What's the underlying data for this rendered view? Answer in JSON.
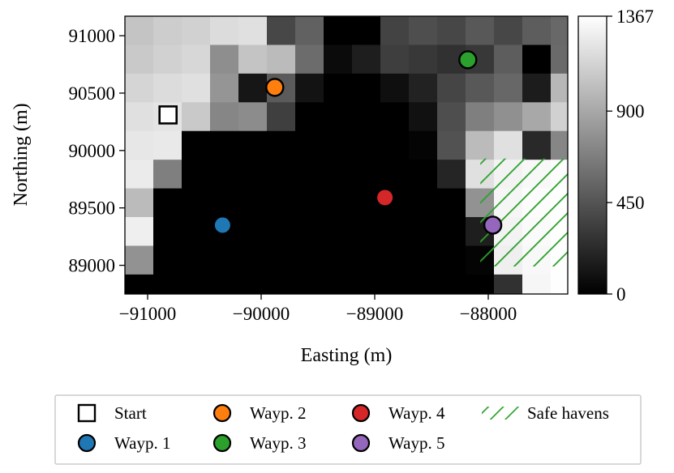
{
  "chart_data": {
    "type": "heatmap",
    "title": "",
    "xlabel": "Easting (m)",
    "ylabel": "Northing (m)",
    "xlim": [
      -91200,
      -87300
    ],
    "ylim": [
      88750,
      91170
    ],
    "grid": false,
    "x_ticks": [
      -91000,
      -90000,
      -89000,
      -88000
    ],
    "x_tick_labels": [
      "−91000",
      "−90000",
      "−89000",
      "−88000"
    ],
    "y_ticks": [
      89000,
      89500,
      90000,
      90500,
      91000
    ],
    "y_tick_labels": [
      "89000",
      "89500",
      "90000",
      "90500",
      "91000"
    ],
    "cell_size_m": 250,
    "grid_x0": -91200,
    "grid_y_top": 91170,
    "colormap": "gray",
    "colorbar": {
      "min": 0,
      "max": 1367,
      "ticks": [
        0,
        450,
        900,
        1367
      ],
      "tick_labels": [
        "0",
        "450",
        "900",
        "1367"
      ]
    },
    "values": [
      [
        1050,
        1100,
        1120,
        1180,
        1200,
        380,
        520,
        0,
        0,
        360,
        420,
        380,
        470,
        380,
        500,
        560
      ],
      [
        1080,
        1120,
        1150,
        760,
        1050,
        1000,
        580,
        60,
        160,
        330,
        300,
        260,
        300,
        500,
        0,
        570
      ],
      [
        1140,
        1180,
        1200,
        800,
        120,
        490,
        100,
        0,
        0,
        80,
        180,
        370,
        470,
        550,
        150,
        980
      ],
      [
        1200,
        1220,
        1080,
        720,
        750,
        340,
        0,
        0,
        0,
        0,
        90,
        420,
        680,
        770,
        900,
        1120
      ],
      [
        1240,
        1250,
        0,
        0,
        0,
        0,
        0,
        0,
        0,
        0,
        20,
        440,
        1000,
        1200,
        220,
        720
      ],
      [
        1260,
        680,
        0,
        0,
        0,
        0,
        0,
        0,
        0,
        0,
        0,
        200,
        1200,
        1300,
        1330,
        1350
      ],
      [
        1000,
        0,
        0,
        0,
        0,
        0,
        0,
        0,
        0,
        0,
        0,
        0,
        780,
        1320,
        1350,
        1360
      ],
      [
        1280,
        0,
        0,
        0,
        0,
        0,
        0,
        0,
        0,
        0,
        0,
        0,
        160,
        1300,
        1340,
        1360
      ],
      [
        780,
        0,
        0,
        0,
        0,
        0,
        0,
        0,
        0,
        0,
        0,
        0,
        20,
        1280,
        1330,
        1360
      ],
      [
        0,
        0,
        0,
        0,
        0,
        0,
        0,
        0,
        0,
        0,
        0,
        0,
        0,
        260,
        1320,
        1360
      ]
    ],
    "safe_haven": {
      "x0": -88070,
      "x1": -87300,
      "y0": 88990,
      "y1": 89930,
      "color": "#2ca02c",
      "label": "Safe havens"
    },
    "points": [
      {
        "name": "Start",
        "x": -90820,
        "y": 90310,
        "marker": "square",
        "color": "#ffffff"
      },
      {
        "name": "Wayp. 1",
        "x": -90340,
        "y": 89350,
        "marker": "circle",
        "color": "#1f77b4",
        "edge": false
      },
      {
        "name": "Wayp. 2",
        "x": -89880,
        "y": 90550,
        "marker": "circle",
        "color": "#ff7f0e",
        "edge": true
      },
      {
        "name": "Wayp. 3",
        "x": -88180,
        "y": 90790,
        "marker": "circle",
        "color": "#2ca02c",
        "edge": true
      },
      {
        "name": "Wayp. 4",
        "x": -88910,
        "y": 89590,
        "marker": "circle",
        "color": "#d62728",
        "edge": false
      },
      {
        "name": "Wayp. 5",
        "x": -87960,
        "y": 89350,
        "marker": "circle",
        "color": "#9467bd",
        "edge": true
      }
    ],
    "legend": {
      "placement": "bottom-center",
      "entries": [
        {
          "label": "Start",
          "marker": "square",
          "color": "#ffffff"
        },
        {
          "label": "Wayp. 1",
          "marker": "circle",
          "color": "#1f77b4"
        },
        {
          "label": "Wayp. 2",
          "marker": "circle",
          "color": "#ff7f0e"
        },
        {
          "label": "Wayp. 3",
          "marker": "circle",
          "color": "#2ca02c"
        },
        {
          "label": "Wayp. 4",
          "marker": "circle",
          "color": "#d62728"
        },
        {
          "label": "Wayp. 5",
          "marker": "circle",
          "color": "#9467bd"
        },
        {
          "label": "Safe havens",
          "marker": "hatch",
          "color": "#2ca02c"
        }
      ]
    }
  }
}
